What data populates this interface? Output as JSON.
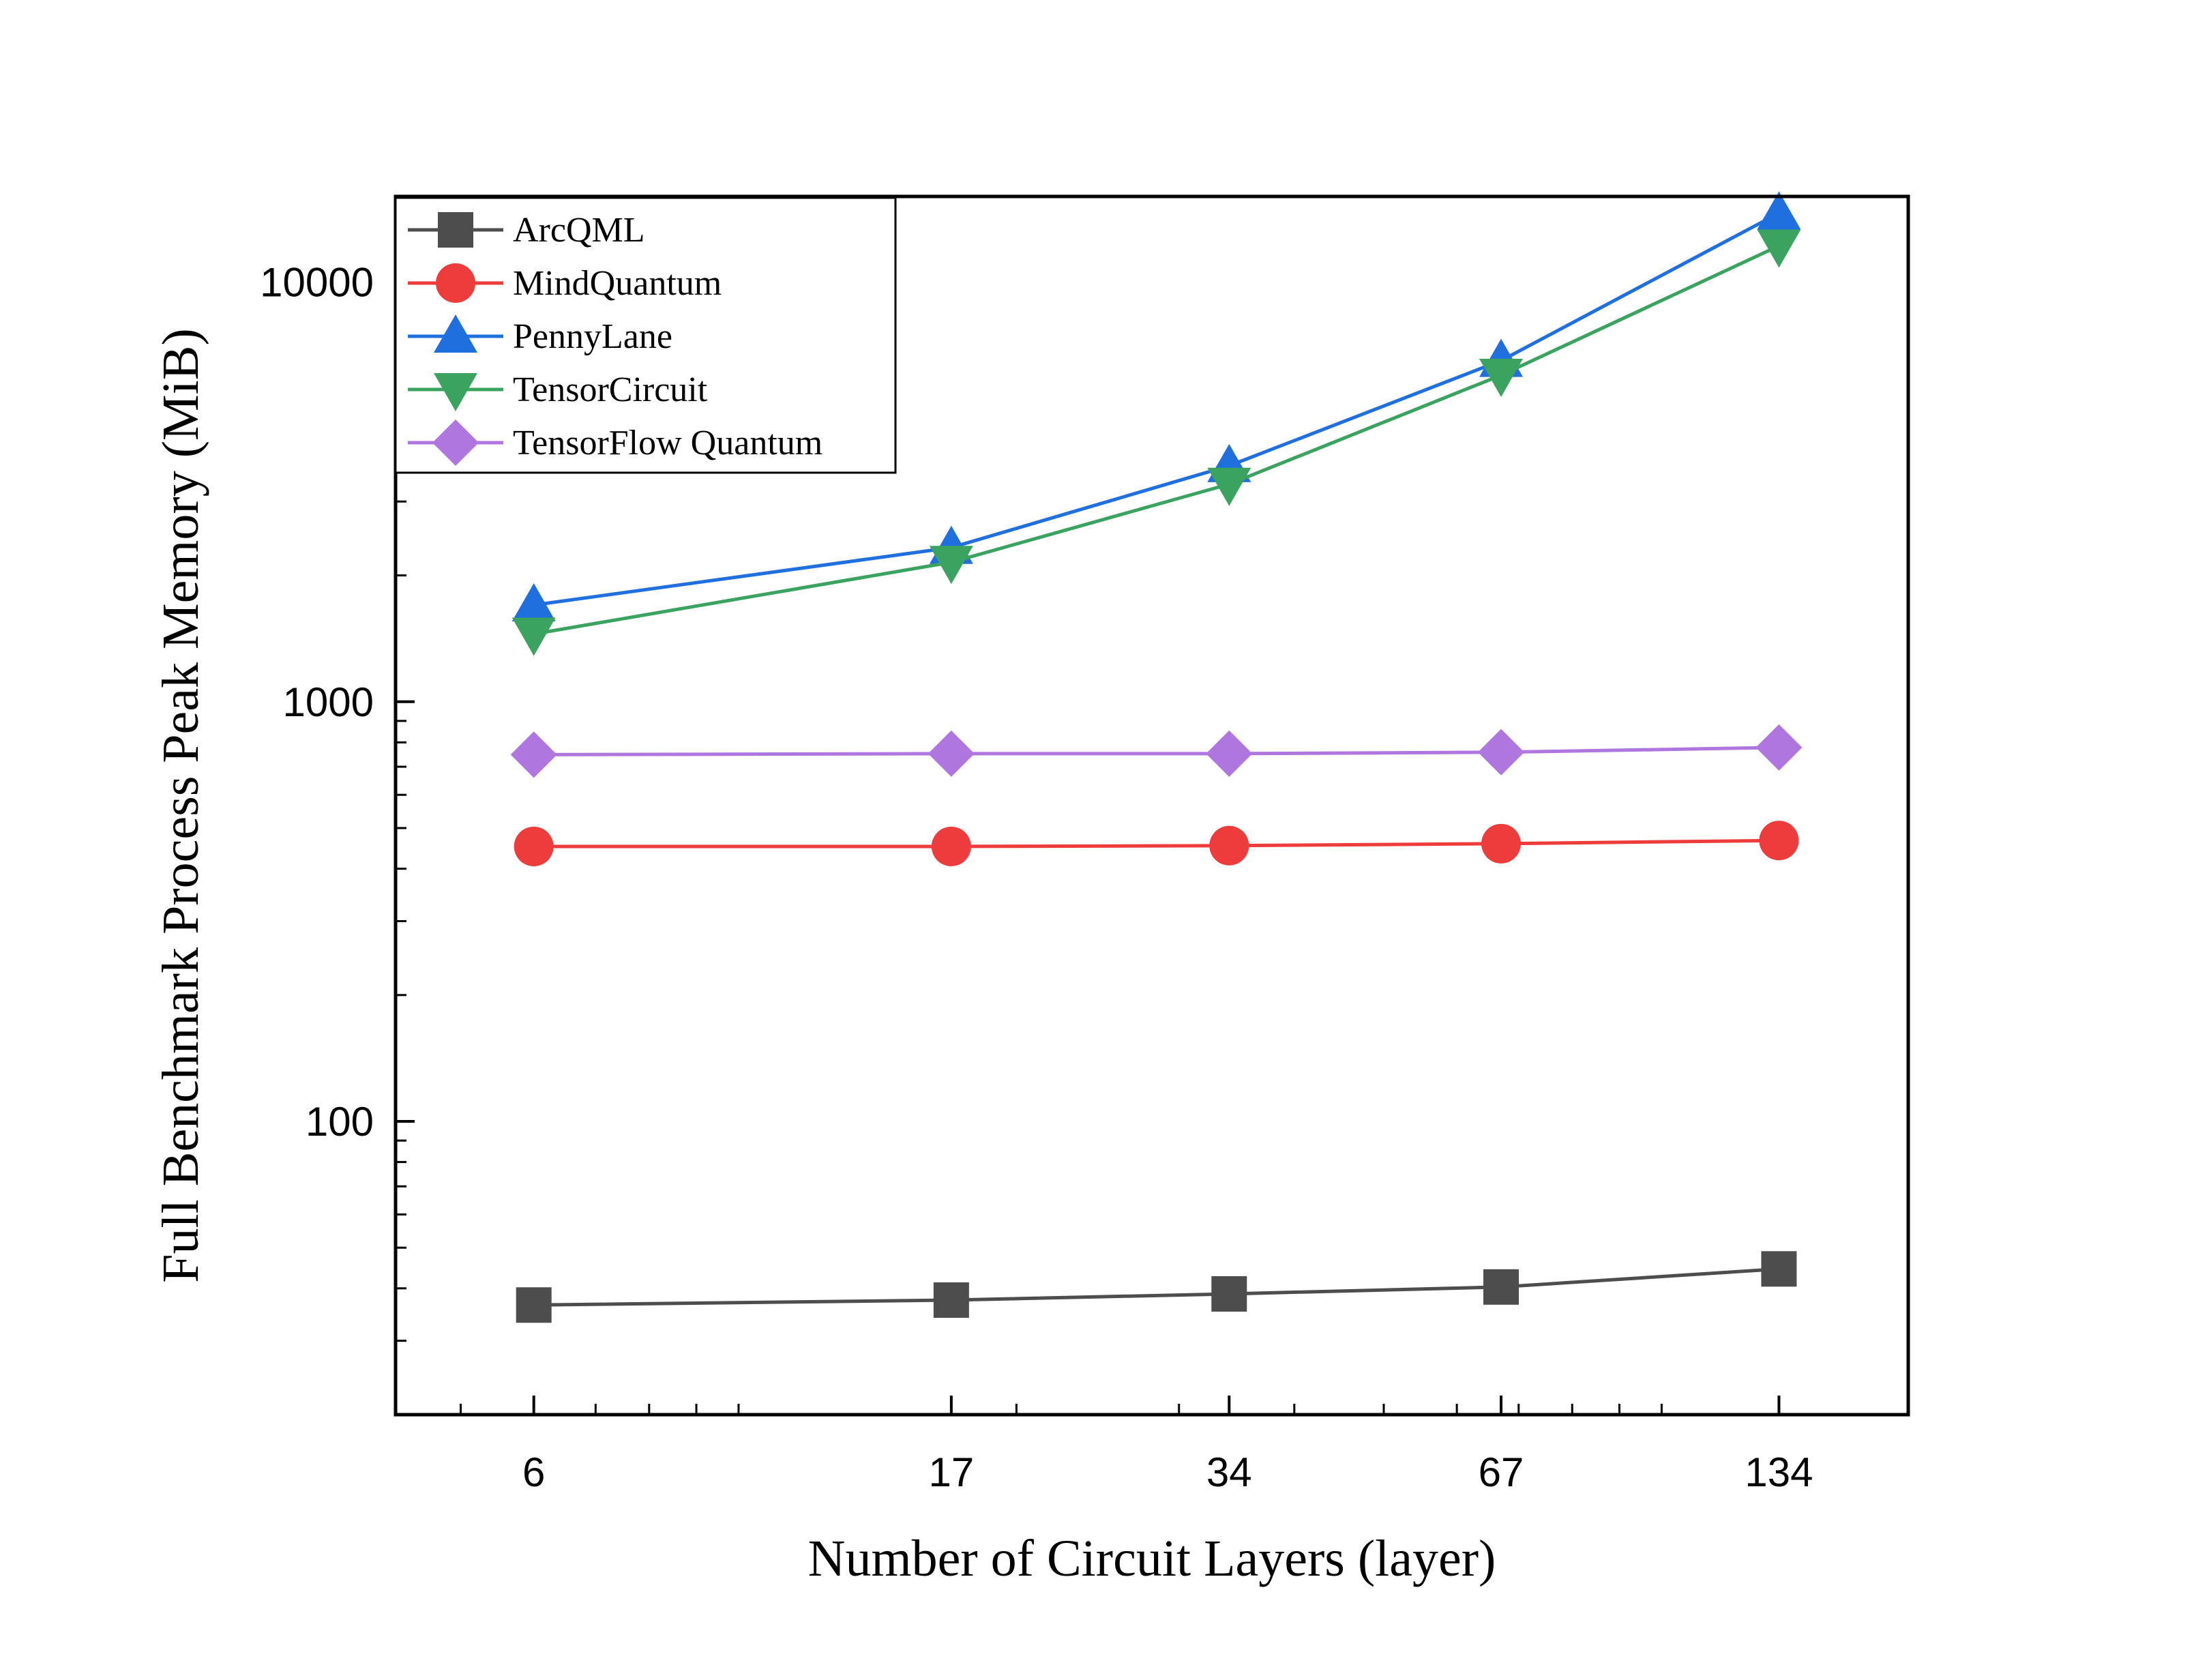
{
  "chart_data": {
    "type": "line",
    "title": "",
    "xlabel": "Number of Circuit Layers (layer)",
    "ylabel": "Full Benchmark Process Peak Memory (MiB)",
    "x": [
      6,
      17,
      34,
      67,
      134
    ],
    "x_tick_labels": [
      "6",
      "17",
      "34",
      "67",
      "134"
    ],
    "xscale": "log",
    "yscale": "log",
    "xlim": [
      4.25,
      185
    ],
    "ylim": [
      20,
      16000
    ],
    "y_ticks": [
      100,
      1000,
      10000
    ],
    "y_tick_labels": [
      "100",
      "1000",
      "10000"
    ],
    "grid": false,
    "legend_position": "top-left",
    "series": [
      {
        "name": "ArcQML",
        "marker": "square",
        "color": "#4d4d4d",
        "values": [
          36.5,
          37.5,
          38.8,
          40.3,
          44.5
        ]
      },
      {
        "name": "MindQuantum",
        "marker": "circle",
        "color": "#ee3b3b",
        "values": [
          452,
          452,
          454,
          459,
          467
        ]
      },
      {
        "name": "PennyLane",
        "marker": "triangle-up",
        "color": "#1f6fde",
        "values": [
          1700,
          2330,
          3650,
          6500,
          14600
        ]
      },
      {
        "name": "TensorCircuit",
        "marker": "triangle-down",
        "color": "#3aa35f",
        "values": [
          1450,
          2150,
          3300,
          6000,
          12200
        ]
      },
      {
        "name": "TensorFlow Quantum",
        "marker": "diamond",
        "color": "#b076e0",
        "values": [
          748,
          752,
          752,
          758,
          778
        ]
      }
    ]
  }
}
